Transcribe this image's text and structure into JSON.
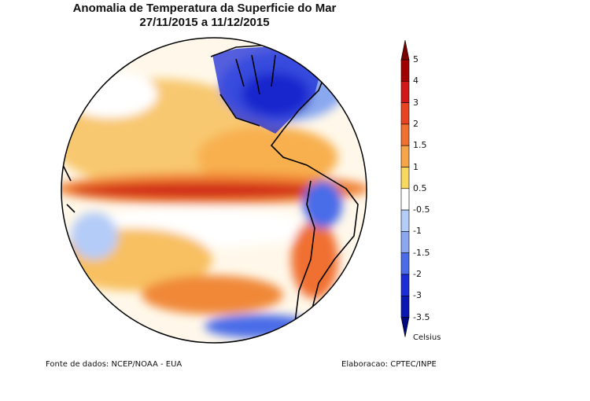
{
  "title": {
    "line1": "Anomalia de Temperatura da Superficie do Mar",
    "line2": "27/11/2015 a 11/12/2015"
  },
  "colorbar": {
    "labels": [
      "5",
      "4",
      "3",
      "2",
      "1.5",
      "1",
      "0.5",
      "-0.5",
      "-1",
      "-1.5",
      "-2",
      "-3",
      "-3.5"
    ],
    "unit": "Celsius",
    "colors": [
      "#7a0000",
      "#a00000",
      "#d01818",
      "#e84422",
      "#f07030",
      "#f8a448",
      "#f8d860",
      "#ffffff",
      "#b4ccf8",
      "#8aa8f0",
      "#4a6ce8",
      "#1c2cd8",
      "#0818b0",
      "#000880"
    ]
  },
  "footer": {
    "source": "Fonte de dados: NCEP/NOAA - EUA",
    "credit": "Elaboracao: CPTEC/INPE"
  }
}
